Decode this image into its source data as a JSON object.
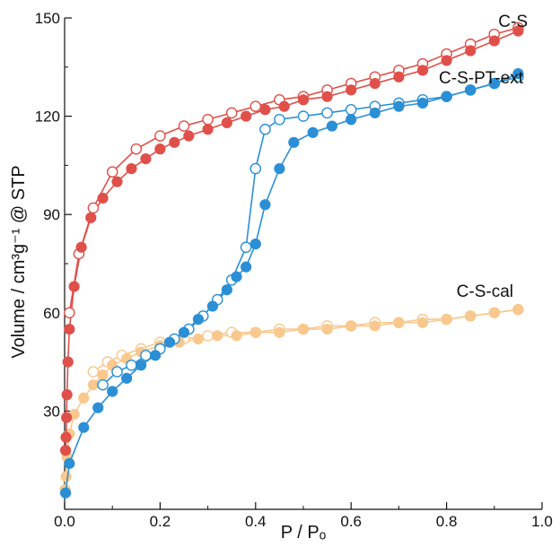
{
  "chart_data": {
    "type": "scatter",
    "xlabel": "P / Pₒ",
    "ylabel": "Volume / cm³g⁻¹ @ STP",
    "xlim": [
      0,
      1.0
    ],
    "ylim": [
      0,
      150
    ],
    "x_ticks": [
      "0.0",
      "0.2",
      "0.4",
      "0.6",
      "0.8",
      "1.0"
    ],
    "y_ticks": [
      "30",
      "60",
      "90",
      "120",
      "150"
    ],
    "x_tick_values": [
      0,
      0.2,
      0.4,
      0.6,
      0.8,
      1.0
    ],
    "y_tick_values": [
      30,
      60,
      90,
      120,
      150
    ],
    "grid": false,
    "legend": "inline labels",
    "series": [
      {
        "name": "C-S",
        "color": "#e0504a",
        "adsorption": {
          "x": [
            0.002,
            0.003,
            0.004,
            0.005,
            0.007,
            0.01,
            0.02,
            0.035,
            0.055,
            0.08,
            0.11,
            0.14,
            0.17,
            0.2,
            0.23,
            0.26,
            0.3,
            0.34,
            0.38,
            0.42,
            0.46,
            0.5,
            0.55,
            0.6,
            0.65,
            0.7,
            0.75,
            0.8,
            0.85,
            0.9,
            0.95
          ],
          "y": [
            18,
            22,
            28,
            35,
            45,
            55,
            68,
            80,
            89,
            95,
            100,
            104,
            107,
            110,
            112,
            114,
            116,
            118,
            120,
            122,
            123,
            125,
            126,
            128,
            130,
            132,
            134,
            137,
            140,
            143,
            146
          ]
        },
        "desorption": {
          "x": [
            0.95,
            0.9,
            0.85,
            0.8,
            0.75,
            0.7,
            0.65,
            0.6,
            0.55,
            0.5,
            0.45,
            0.4,
            0.35,
            0.3,
            0.25,
            0.2,
            0.15,
            0.1,
            0.06,
            0.03,
            0.01
          ],
          "y": [
            147,
            145,
            142,
            139,
            136,
            134,
            132,
            130,
            128,
            126,
            125,
            123,
            121,
            119,
            117,
            114,
            110,
            103,
            92,
            78,
            60
          ]
        }
      },
      {
        "name": "C-S-PT-ext",
        "color": "#2b8fd6",
        "adsorption": {
          "x": [
            0.002,
            0.01,
            0.04,
            0.07,
            0.1,
            0.13,
            0.16,
            0.19,
            0.22,
            0.25,
            0.28,
            0.31,
            0.34,
            0.36,
            0.38,
            0.4,
            0.42,
            0.45,
            0.48,
            0.52,
            0.56,
            0.6,
            0.65,
            0.7,
            0.75,
            0.8,
            0.85,
            0.9,
            0.95
          ],
          "y": [
            5,
            14,
            25,
            31,
            36,
            40,
            44,
            47,
            51,
            54,
            58,
            62,
            67,
            71,
            74,
            81,
            93,
            104,
            112,
            115,
            117,
            119,
            121,
            123,
            124,
            126,
            128,
            130,
            133
          ]
        },
        "desorption": {
          "x": [
            0.95,
            0.9,
            0.85,
            0.8,
            0.75,
            0.7,
            0.65,
            0.6,
            0.55,
            0.5,
            0.45,
            0.42,
            0.4,
            0.38,
            0.35,
            0.32,
            0.29,
            0.26,
            0.23,
            0.2,
            0.17,
            0.14,
            0.11,
            0.08
          ],
          "y": [
            132,
            130,
            128,
            126,
            125,
            124,
            123,
            122,
            121,
            120,
            119,
            116,
            104,
            80,
            70,
            64,
            59,
            55,
            52,
            49,
            47,
            44,
            42,
            38
          ]
        }
      },
      {
        "name": "C-S-cal",
        "color": "#f9c88e",
        "adsorption": {
          "x": [
            0.001,
            0.003,
            0.005,
            0.01,
            0.02,
            0.04,
            0.06,
            0.08,
            0.1,
            0.13,
            0.16,
            0.2,
            0.24,
            0.28,
            0.32,
            0.36,
            0.4,
            0.45,
            0.5,
            0.55,
            0.6,
            0.65,
            0.7,
            0.75,
            0.8,
            0.85,
            0.9,
            0.95
          ],
          "y": [
            6,
            10,
            16,
            23,
            29,
            34,
            38,
            41,
            44,
            46,
            48,
            50,
            51,
            52,
            53,
            53,
            54,
            54,
            55,
            55,
            56,
            56,
            57,
            57,
            58,
            59,
            60,
            61
          ]
        },
        "desorption": {
          "x": [
            0.95,
            0.9,
            0.85,
            0.8,
            0.75,
            0.7,
            0.65,
            0.6,
            0.55,
            0.5,
            0.45,
            0.4,
            0.35,
            0.3,
            0.25,
            0.2,
            0.16,
            0.12,
            0.09,
            0.06
          ],
          "y": [
            61,
            60,
            59,
            58,
            58,
            57,
            57,
            56,
            56,
            55,
            55,
            54,
            54,
            53,
            52,
            51,
            49,
            47,
            45,
            42
          ]
        }
      }
    ]
  }
}
